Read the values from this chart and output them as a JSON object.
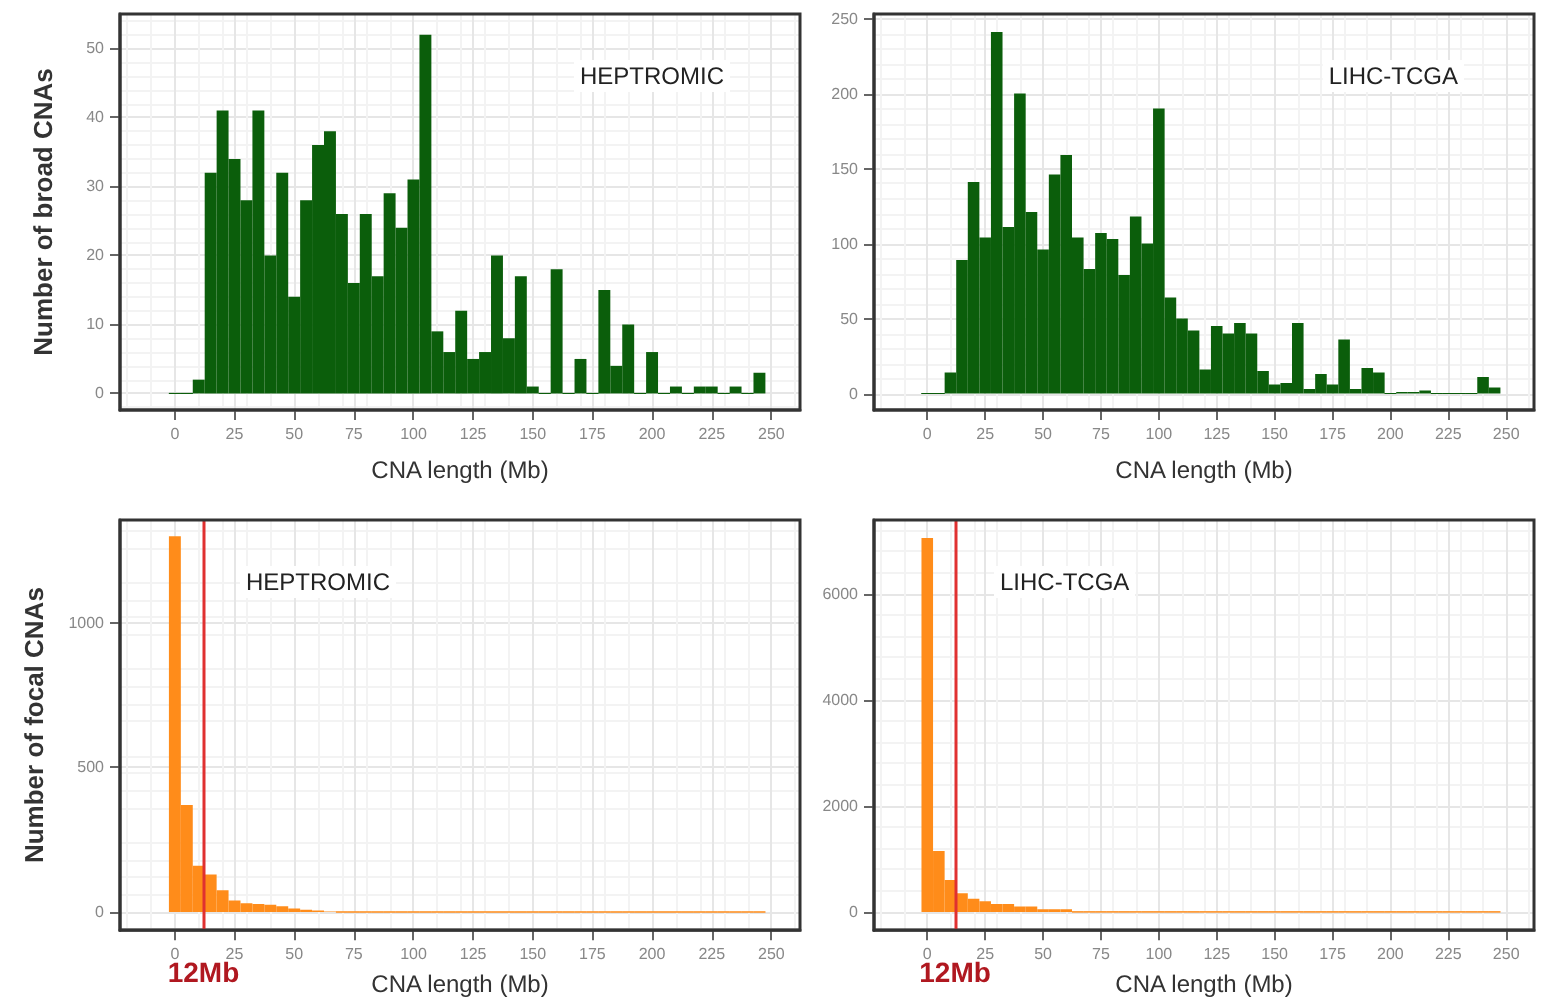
{
  "chart_data": [
    {
      "type": "histogram",
      "xlabel": "CNA length (Mb)",
      "ylabel": "Number of broad CNAs",
      "annotations": [
        "HEPTROMIC"
      ],
      "color": "#0b5e0b",
      "grid": true,
      "xlim": [
        -23,
        262
      ],
      "xticks": [
        0,
        25,
        50,
        75,
        100,
        125,
        150,
        175,
        200,
        225,
        250
      ],
      "ylim": [
        -2.4,
        55
      ],
      "yticks": [
        0,
        10,
        20,
        30,
        40,
        50
      ],
      "bins": [
        -2.5,
        2.5,
        7.5,
        12.5,
        17.5,
        22.5,
        27.5,
        32.5,
        37.5,
        42.5,
        47.5,
        52.5,
        57.5,
        62.5,
        67.5,
        72.5,
        77.5,
        82.5,
        87.5,
        92.5,
        97.5,
        102.5,
        107.5,
        112.5,
        117.5,
        122.5,
        127.5,
        132.5,
        137.5,
        142.5,
        147.5,
        152.5,
        157.5,
        162.5,
        167.5,
        172.5,
        177.5,
        182.5,
        187.5,
        192.5,
        197.5,
        202.5,
        207.5,
        212.5,
        217.5,
        222.5,
        227.5,
        232.5,
        237.5,
        242.5,
        247.5
      ],
      "values": [
        0,
        0,
        2,
        32,
        41,
        34,
        28,
        41,
        20,
        32,
        14,
        28,
        36,
        38,
        26,
        16,
        26,
        17,
        29,
        24,
        31,
        52,
        9,
        6,
        12,
        5,
        6,
        20,
        8,
        17,
        1,
        0,
        18,
        0,
        5,
        0,
        15,
        4,
        10,
        0,
        6,
        0,
        1,
        0,
        1,
        1,
        0,
        1,
        0,
        3
      ]
    },
    {
      "type": "histogram",
      "xlabel": "CNA length (Mb)",
      "annotations": [
        "LIHC-TCGA"
      ],
      "color": "#0b5e0b",
      "grid": true,
      "xlim": [
        -23,
        262
      ],
      "xticks": [
        0,
        25,
        50,
        75,
        100,
        125,
        150,
        175,
        200,
        225,
        250
      ],
      "ylim": [
        -11,
        253
      ],
      "yticks": [
        0,
        50,
        100,
        150,
        200,
        250
      ],
      "bins": [
        -2.5,
        2.5,
        7.5,
        12.5,
        17.5,
        22.5,
        27.5,
        32.5,
        37.5,
        42.5,
        47.5,
        52.5,
        57.5,
        62.5,
        67.5,
        72.5,
        77.5,
        82.5,
        87.5,
        92.5,
        97.5,
        102.5,
        107.5,
        112.5,
        117.5,
        122.5,
        127.5,
        132.5,
        137.5,
        142.5,
        147.5,
        152.5,
        157.5,
        162.5,
        167.5,
        172.5,
        177.5,
        182.5,
        187.5,
        192.5,
        197.5,
        202.5,
        207.5,
        212.5,
        217.5,
        222.5,
        227.5,
        232.5,
        237.5,
        242.5,
        247.5
      ],
      "values": [
        0,
        0,
        14,
        89,
        141,
        104,
        241,
        111,
        200,
        121,
        96,
        146,
        159,
        104,
        83,
        107,
        103,
        79,
        118,
        100,
        190,
        64,
        50,
        42,
        16,
        45,
        40,
        47,
        40,
        15,
        6,
        7,
        47,
        3,
        13,
        6,
        36,
        3,
        17,
        14,
        0,
        1,
        1,
        2,
        0,
        0,
        0,
        0,
        11,
        4
      ]
    },
    {
      "type": "histogram",
      "xlabel": "CNA length (Mb)",
      "ylabel": "Number of focal CNAs",
      "annotations": [
        "HEPTROMIC"
      ],
      "color": "#ff8c1a",
      "grid": true,
      "xlim": [
        -23,
        262
      ],
      "xticks": [
        0,
        25,
        50,
        75,
        100,
        125,
        150,
        175,
        200,
        225,
        250
      ],
      "ylim": [
        -63,
        1356
      ],
      "yticks": [
        0,
        500,
        1000
      ],
      "ref_lines": [
        {
          "axis": "x",
          "value": 12,
          "label": "12Mb",
          "color": "#e03030"
        }
      ],
      "bins": [
        -2.5,
        2.5,
        7.5,
        12.5,
        17.5,
        22.5,
        27.5,
        32.5,
        37.5,
        42.5,
        47.5,
        52.5,
        57.5,
        62.5,
        67.5,
        72.5,
        77.5,
        82.5,
        87.5,
        92.5,
        97.5,
        102.5,
        107.5,
        112.5,
        117.5,
        122.5,
        127.5,
        132.5,
        137.5,
        142.5,
        147.5,
        152.5,
        157.5,
        162.5,
        167.5,
        172.5,
        177.5,
        182.5,
        187.5,
        192.5,
        197.5,
        202.5,
        207.5,
        212.5,
        217.5,
        222.5,
        227.5,
        232.5,
        237.5,
        242.5,
        247.5
      ],
      "values": [
        1300,
        370,
        160,
        130,
        75,
        40,
        30,
        28,
        25,
        20,
        12,
        8,
        5,
        2,
        0,
        0,
        0,
        0,
        0,
        0,
        0,
        0,
        0,
        0,
        0,
        0,
        0,
        0,
        0,
        0,
        0,
        0,
        0,
        0,
        0,
        0,
        0,
        0,
        0,
        0,
        0,
        0,
        0,
        0,
        0,
        0,
        0,
        0,
        0,
        0
      ]
    },
    {
      "type": "histogram",
      "xlabel": "CNA length (Mb)",
      "annotations": [
        "LIHC-TCGA"
      ],
      "color": "#ff8c1a",
      "grid": true,
      "xlim": [
        -23,
        262
      ],
      "xticks": [
        0,
        25,
        50,
        75,
        100,
        125,
        150,
        175,
        200,
        225,
        250
      ],
      "ylim": [
        -345,
        7390
      ],
      "yticks": [
        0,
        2000,
        4000,
        6000
      ],
      "ref_lines": [
        {
          "axis": "x",
          "value": 12,
          "label": "12Mb",
          "color": "#e03030"
        }
      ],
      "bins": [
        -2.5,
        2.5,
        7.5,
        12.5,
        17.5,
        22.5,
        27.5,
        32.5,
        37.5,
        42.5,
        47.5,
        52.5,
        57.5,
        62.5,
        67.5,
        72.5,
        77.5,
        82.5,
        87.5,
        92.5,
        97.5,
        102.5,
        107.5,
        112.5,
        117.5,
        122.5,
        127.5,
        132.5,
        137.5,
        142.5,
        147.5,
        152.5,
        157.5,
        162.5,
        167.5,
        172.5,
        177.5,
        182.5,
        187.5,
        192.5,
        197.5,
        202.5,
        207.5,
        212.5,
        217.5,
        222.5,
        227.5,
        232.5,
        237.5,
        242.5,
        247.5
      ],
      "values": [
        7050,
        1150,
        600,
        350,
        250,
        200,
        150,
        150,
        100,
        100,
        50,
        50,
        50,
        0,
        0,
        0,
        0,
        0,
        0,
        0,
        0,
        0,
        0,
        0,
        0,
        0,
        0,
        0,
        0,
        0,
        0,
        0,
        0,
        0,
        0,
        0,
        0,
        0,
        0,
        0,
        0,
        0,
        0,
        0,
        0,
        0,
        0,
        0,
        0,
        0
      ]
    }
  ]
}
